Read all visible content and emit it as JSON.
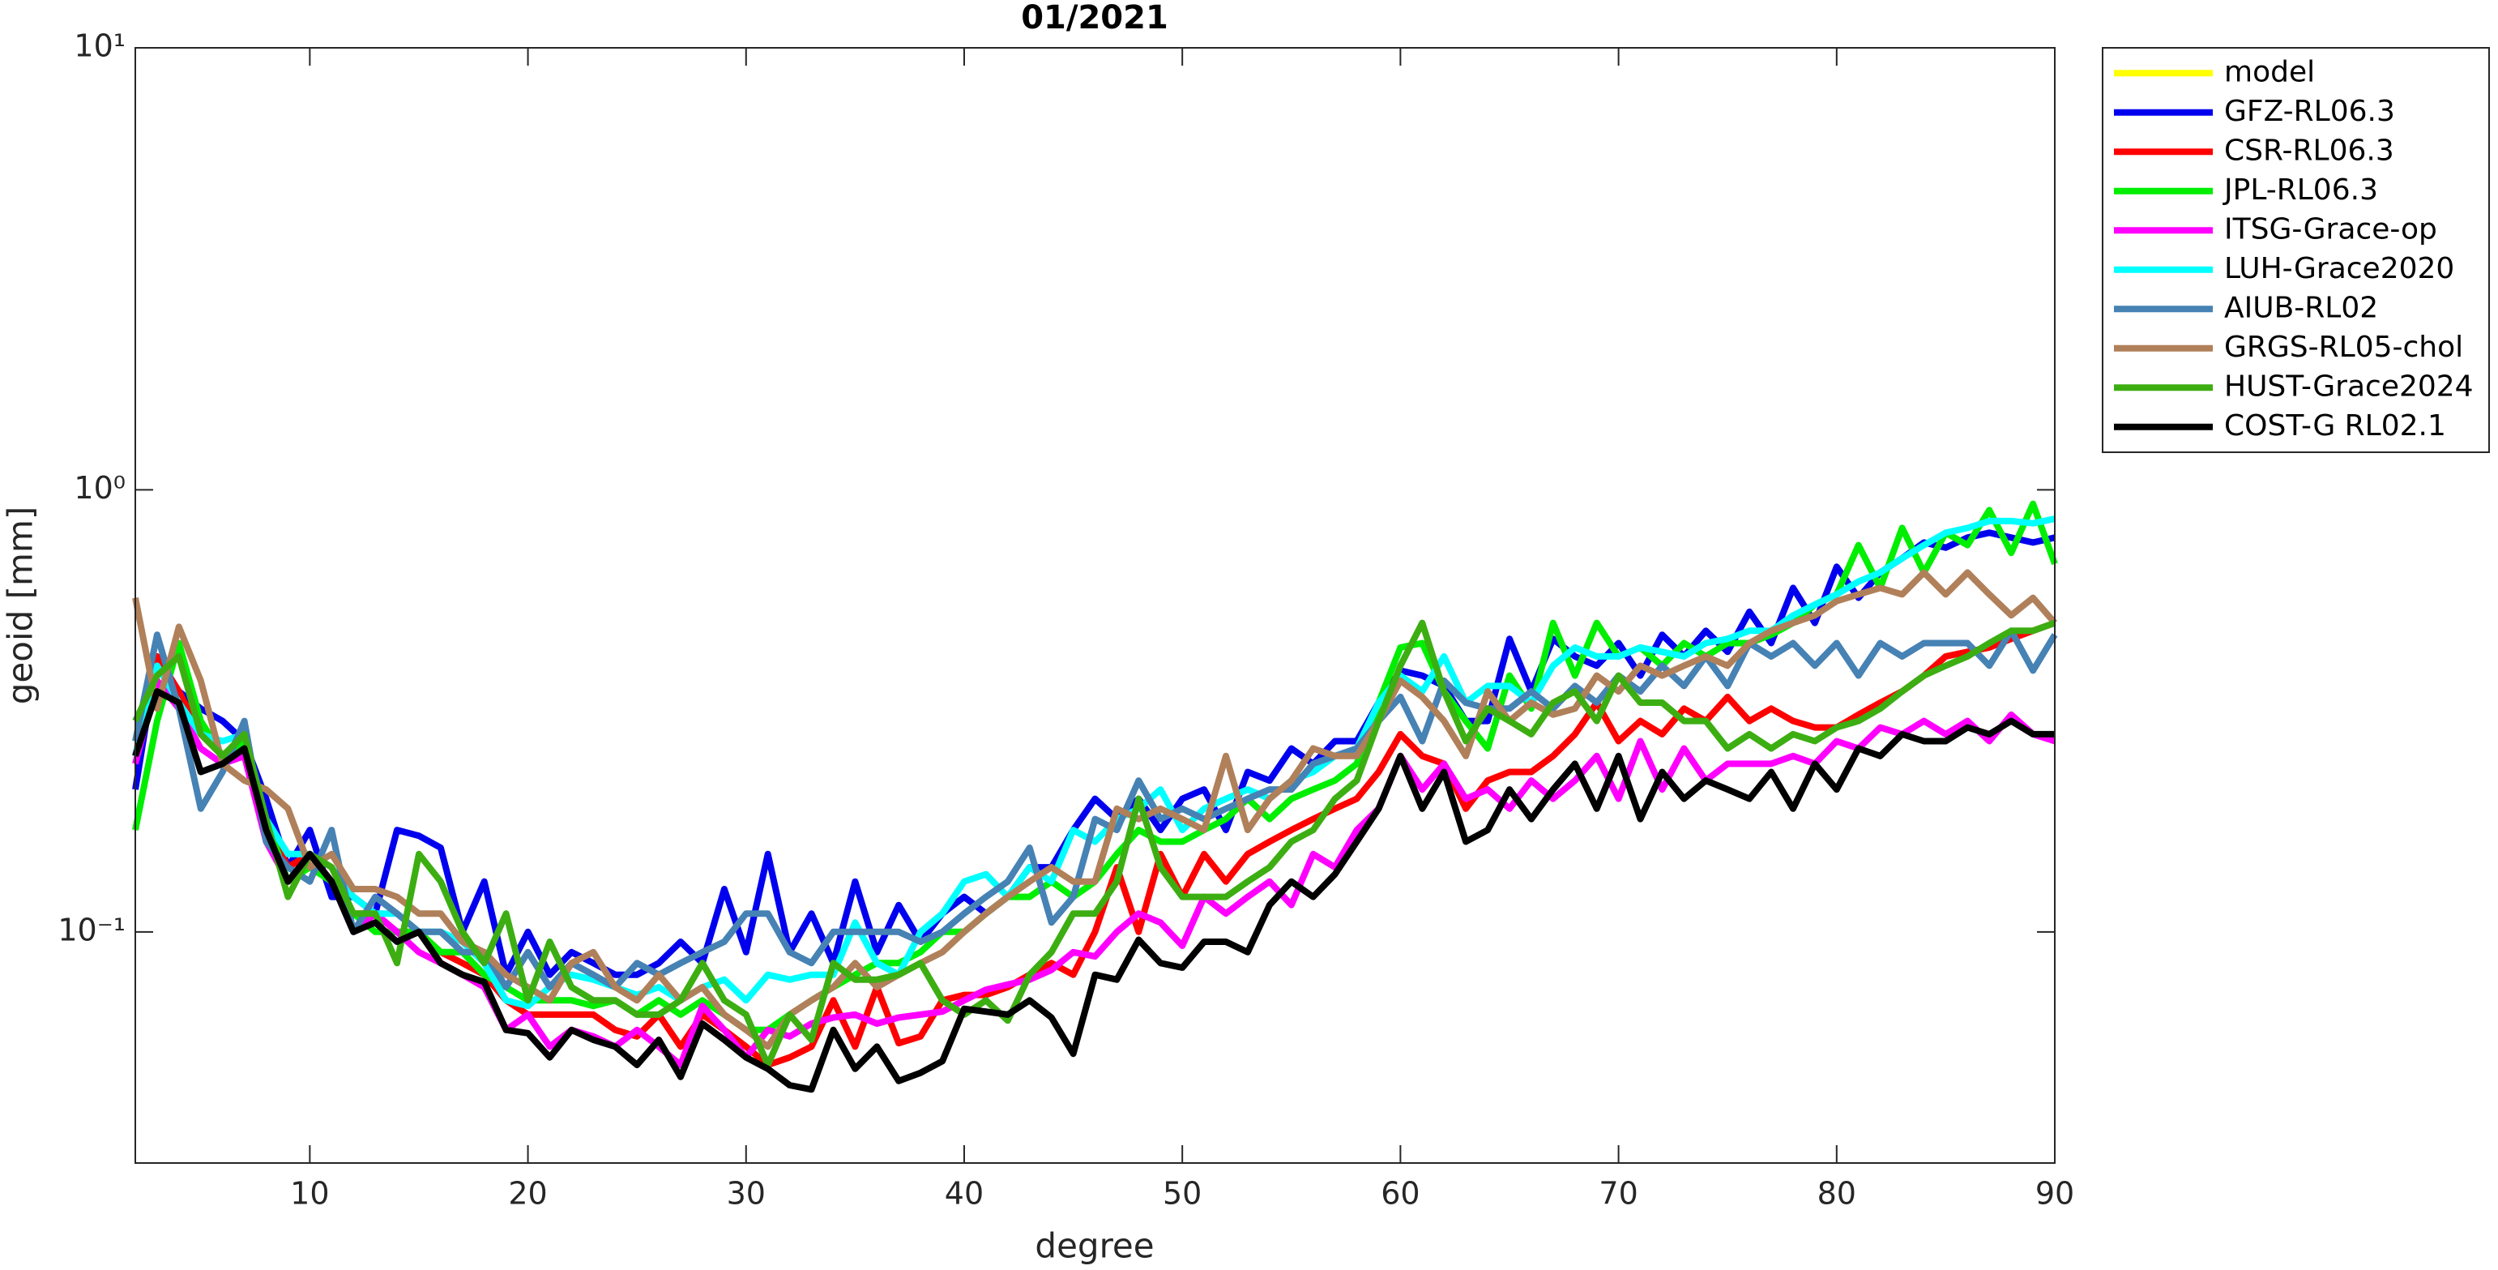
{
  "chart_data": {
    "type": "line",
    "title": "01/2021",
    "xlabel": "degree",
    "ylabel": "geoid [mm]",
    "yscale": "log",
    "legend": "northeastoutside",
    "xlim": [
      2,
      90
    ],
    "xticks": [
      10,
      20,
      30,
      40,
      50,
      60,
      70,
      80,
      90
    ],
    "ylim": [
      0.03,
      10
    ],
    "yticks": [
      {
        "value": 0.1,
        "label": "10⁻¹"
      },
      {
        "value": 1,
        "label": "10⁰"
      },
      {
        "value": 10,
        "label": "10¹"
      }
    ],
    "x": [
      2,
      3,
      4,
      5,
      6,
      7,
      8,
      9,
      10,
      11,
      12,
      13,
      14,
      15,
      16,
      17,
      18,
      19,
      20,
      21,
      22,
      23,
      24,
      25,
      26,
      27,
      28,
      29,
      30,
      31,
      32,
      33,
      34,
      35,
      36,
      37,
      38,
      39,
      40,
      41,
      42,
      43,
      44,
      45,
      46,
      47,
      48,
      49,
      50,
      51,
      52,
      53,
      54,
      55,
      56,
      57,
      58,
      59,
      60,
      61,
      62,
      63,
      64,
      65,
      66,
      67,
      68,
      69,
      70,
      71,
      72,
      73,
      74,
      75,
      76,
      77,
      78,
      79,
      80,
      81,
      82,
      83,
      84,
      85,
      86,
      87,
      88,
      89,
      90
    ],
    "series": [
      {
        "name": "model",
        "color": "#ffff00",
        "values": [
          null,
          null,
          null,
          null,
          null,
          null,
          null,
          null,
          null,
          null,
          null,
          null,
          null,
          null,
          null,
          null,
          null,
          null,
          null,
          null,
          null,
          null,
          null,
          null,
          null,
          null,
          null,
          null,
          null,
          null,
          null,
          null,
          null,
          null,
          null,
          null,
          null,
          null,
          null,
          null,
          null,
          null,
          null,
          null,
          null,
          null,
          null,
          null,
          null,
          null,
          null,
          null,
          null,
          null,
          null,
          null,
          null,
          null,
          null,
          null,
          null,
          null,
          null,
          null,
          null,
          null,
          null,
          null,
          null,
          null,
          null,
          null,
          null,
          null,
          null,
          null,
          null,
          null,
          null,
          null,
          null,
          null,
          null,
          null,
          null,
          null,
          null,
          null,
          null
        ]
      },
      {
        "name": "GFZ-RL06.3",
        "color": "#0000ee",
        "values": [
          0.21,
          0.42,
          0.35,
          0.32,
          0.3,
          0.27,
          0.2,
          0.14,
          0.17,
          0.12,
          0.12,
          0.11,
          0.17,
          0.165,
          0.155,
          0.1,
          0.13,
          0.08,
          0.1,
          0.08,
          0.09,
          0.085,
          0.08,
          0.08,
          0.085,
          0.095,
          0.085,
          0.125,
          0.09,
          0.15,
          0.09,
          0.11,
          0.085,
          0.13,
          0.09,
          0.115,
          0.095,
          0.11,
          0.12,
          0.11,
          0.12,
          0.14,
          0.14,
          0.17,
          0.2,
          0.18,
          0.2,
          0.17,
          0.2,
          0.21,
          0.17,
          0.23,
          0.22,
          0.26,
          0.24,
          0.27,
          0.27,
          0.33,
          0.39,
          0.38,
          0.36,
          0.3,
          0.3,
          0.46,
          0.35,
          0.46,
          0.42,
          0.4,
          0.45,
          0.38,
          0.47,
          0.42,
          0.48,
          0.43,
          0.53,
          0.45,
          0.6,
          0.5,
          0.67,
          0.57,
          0.65,
          0.7,
          0.76,
          0.74,
          0.78,
          0.8,
          0.78,
          0.76,
          0.78
        ]
      },
      {
        "name": "CSR-RL06.3",
        "color": "#ff0000",
        "values": [
          0.25,
          0.42,
          0.35,
          0.28,
          0.25,
          0.26,
          0.18,
          0.14,
          0.15,
          0.13,
          0.11,
          0.11,
          0.1,
          0.1,
          0.09,
          0.085,
          0.08,
          0.07,
          0.065,
          0.065,
          0.065,
          0.065,
          0.06,
          0.058,
          0.065,
          0.055,
          0.065,
          0.06,
          0.055,
          0.05,
          0.052,
          0.055,
          0.07,
          0.055,
          0.075,
          0.056,
          0.058,
          0.07,
          0.072,
          0.072,
          0.075,
          0.08,
          0.085,
          0.08,
          0.1,
          0.14,
          0.1,
          0.15,
          0.12,
          0.15,
          0.13,
          0.15,
          0.16,
          0.17,
          0.18,
          0.19,
          0.2,
          0.23,
          0.28,
          0.25,
          0.24,
          0.19,
          0.22,
          0.23,
          0.23,
          0.25,
          0.28,
          0.33,
          0.27,
          0.3,
          0.28,
          0.32,
          0.3,
          0.34,
          0.3,
          0.32,
          0.3,
          0.29,
          0.29,
          0.31,
          0.33,
          0.35,
          0.38,
          0.42,
          0.43,
          0.44,
          0.46,
          0.48,
          0.5
        ]
      },
      {
        "name": "JPL-RL06.3",
        "color": "#00ee00",
        "values": [
          0.17,
          0.3,
          0.45,
          0.3,
          0.25,
          0.27,
          0.18,
          0.13,
          0.14,
          0.13,
          0.11,
          0.1,
          0.1,
          0.1,
          0.09,
          0.09,
          0.08,
          0.075,
          0.07,
          0.07,
          0.07,
          0.068,
          0.07,
          0.065,
          0.07,
          0.065,
          0.07,
          0.065,
          0.06,
          0.06,
          0.065,
          0.07,
          0.075,
          0.08,
          0.085,
          0.085,
          0.09,
          0.1,
          0.1,
          0.11,
          0.12,
          0.12,
          0.13,
          0.12,
          0.13,
          0.15,
          0.17,
          0.16,
          0.16,
          0.17,
          0.18,
          0.2,
          0.18,
          0.2,
          0.21,
          0.22,
          0.24,
          0.33,
          0.44,
          0.45,
          0.35,
          0.3,
          0.26,
          0.38,
          0.32,
          0.5,
          0.38,
          0.5,
          0.42,
          0.44,
          0.4,
          0.45,
          0.42,
          0.45,
          0.45,
          0.47,
          0.5,
          0.55,
          0.58,
          0.75,
          0.6,
          0.82,
          0.65,
          0.8,
          0.75,
          0.9,
          0.72,
          0.93,
          0.68
        ]
      },
      {
        "name": "ITSG-Grace-op",
        "color": "#ff00ff",
        "values": [
          0.24,
          0.37,
          0.32,
          0.26,
          0.24,
          0.25,
          0.16,
          0.13,
          0.15,
          0.13,
          0.1,
          0.11,
          0.1,
          0.09,
          0.085,
          0.08,
          0.075,
          0.06,
          0.065,
          0.055,
          0.06,
          0.058,
          0.055,
          0.06,
          0.055,
          0.05,
          0.068,
          0.06,
          0.052,
          0.06,
          0.058,
          0.062,
          0.064,
          0.065,
          0.062,
          0.064,
          0.065,
          0.066,
          0.07,
          0.074,
          0.076,
          0.078,
          0.082,
          0.09,
          0.088,
          0.1,
          0.11,
          0.105,
          0.093,
          0.12,
          0.11,
          0.12,
          0.13,
          0.115,
          0.15,
          0.14,
          0.17,
          0.19,
          0.25,
          0.21,
          0.24,
          0.2,
          0.21,
          0.19,
          0.22,
          0.2,
          0.22,
          0.25,
          0.2,
          0.27,
          0.21,
          0.26,
          0.22,
          0.24,
          0.24,
          0.24,
          0.25,
          0.24,
          0.27,
          0.26,
          0.29,
          0.28,
          0.3,
          0.28,
          0.3,
          0.27,
          0.31,
          0.28,
          0.27
        ]
      },
      {
        "name": "LUH-Grace2020",
        "color": "#00ffff",
        "values": [
          0.25,
          0.4,
          0.33,
          0.28,
          0.27,
          0.28,
          0.18,
          0.15,
          0.15,
          0.14,
          0.12,
          0.11,
          0.11,
          0.1,
          0.1,
          0.095,
          0.085,
          0.07,
          0.068,
          0.075,
          0.08,
          0.078,
          0.075,
          0.072,
          0.075,
          0.07,
          0.075,
          0.078,
          0.07,
          0.08,
          0.078,
          0.08,
          0.08,
          0.105,
          0.085,
          0.08,
          0.1,
          0.11,
          0.13,
          0.135,
          0.12,
          0.14,
          0.13,
          0.17,
          0.16,
          0.18,
          0.19,
          0.21,
          0.17,
          0.19,
          0.2,
          0.21,
          0.2,
          0.22,
          0.23,
          0.25,
          0.26,
          0.33,
          0.38,
          0.35,
          0.42,
          0.33,
          0.36,
          0.36,
          0.33,
          0.4,
          0.44,
          0.42,
          0.42,
          0.44,
          0.43,
          0.42,
          0.45,
          0.46,
          0.48,
          0.48,
          0.52,
          0.55,
          0.58,
          0.62,
          0.65,
          0.7,
          0.75,
          0.8,
          0.82,
          0.85,
          0.85,
          0.84,
          0.86
        ]
      },
      {
        "name": "AIUB-RL02",
        "color": "#4682b4",
        "values": [
          0.27,
          0.47,
          0.32,
          0.19,
          0.23,
          0.3,
          0.16,
          0.14,
          0.13,
          0.17,
          0.1,
          0.12,
          0.11,
          0.1,
          0.1,
          0.09,
          0.09,
          0.075,
          0.09,
          0.075,
          0.085,
          0.08,
          0.075,
          0.085,
          0.08,
          0.085,
          0.09,
          0.095,
          0.11,
          0.11,
          0.09,
          0.085,
          0.1,
          0.1,
          0.1,
          0.1,
          0.095,
          0.1,
          0.11,
          0.12,
          0.13,
          0.155,
          0.105,
          0.12,
          0.18,
          0.17,
          0.22,
          0.18,
          0.19,
          0.18,
          0.19,
          0.2,
          0.21,
          0.21,
          0.24,
          0.25,
          0.26,
          0.3,
          0.34,
          0.27,
          0.37,
          0.33,
          0.32,
          0.32,
          0.35,
          0.32,
          0.36,
          0.33,
          0.38,
          0.35,
          0.4,
          0.36,
          0.42,
          0.36,
          0.45,
          0.42,
          0.45,
          0.4,
          0.45,
          0.38,
          0.45,
          0.42,
          0.45,
          0.45,
          0.45,
          0.4,
          0.48,
          0.39,
          0.47
        ]
      },
      {
        "name": "GRGS-RL05-chol",
        "color": "#b0805a",
        "values": [
          0.57,
          0.32,
          0.49,
          0.37,
          0.24,
          0.22,
          0.21,
          0.19,
          0.14,
          0.15,
          0.125,
          0.125,
          0.12,
          0.11,
          0.11,
          0.095,
          0.09,
          0.08,
          0.075,
          0.07,
          0.085,
          0.09,
          0.075,
          0.07,
          0.08,
          0.07,
          0.075,
          0.065,
          0.06,
          0.055,
          0.065,
          0.07,
          0.075,
          0.085,
          0.075,
          0.08,
          0.085,
          0.09,
          0.1,
          0.11,
          0.12,
          0.13,
          0.14,
          0.13,
          0.13,
          0.19,
          0.18,
          0.19,
          0.18,
          0.17,
          0.25,
          0.17,
          0.2,
          0.22,
          0.26,
          0.25,
          0.25,
          0.3,
          0.37,
          0.34,
          0.3,
          0.25,
          0.35,
          0.3,
          0.33,
          0.31,
          0.32,
          0.38,
          0.35,
          0.4,
          0.38,
          0.4,
          0.42,
          0.4,
          0.45,
          0.48,
          0.5,
          0.52,
          0.56,
          0.58,
          0.6,
          0.58,
          0.65,
          0.58,
          0.65,
          0.58,
          0.52,
          0.57,
          0.5
        ]
      },
      {
        "name": "HUST-Grace2024",
        "color": "#3cae12",
        "values": [
          0.3,
          0.38,
          0.42,
          0.28,
          0.25,
          0.28,
          0.18,
          0.12,
          0.15,
          0.14,
          0.11,
          0.11,
          0.085,
          0.15,
          0.13,
          0.1,
          0.085,
          0.11,
          0.07,
          0.095,
          0.075,
          0.07,
          0.07,
          0.065,
          0.065,
          0.07,
          0.085,
          0.07,
          0.065,
          0.05,
          0.065,
          0.057,
          0.085,
          0.078,
          0.078,
          0.08,
          0.085,
          0.07,
          0.065,
          0.07,
          0.063,
          0.08,
          0.09,
          0.11,
          0.11,
          0.13,
          0.2,
          0.14,
          0.12,
          0.12,
          0.12,
          0.13,
          0.14,
          0.16,
          0.17,
          0.2,
          0.22,
          0.3,
          0.4,
          0.5,
          0.35,
          0.27,
          0.32,
          0.3,
          0.28,
          0.33,
          0.35,
          0.3,
          0.38,
          0.33,
          0.33,
          0.3,
          0.3,
          0.26,
          0.28,
          0.26,
          0.28,
          0.27,
          0.29,
          0.3,
          0.32,
          0.35,
          0.38,
          0.4,
          0.42,
          0.45,
          0.48,
          0.48,
          0.5
        ]
      },
      {
        "name": "COST-G RL02.1",
        "color": "#000000",
        "values": [
          0.25,
          0.35,
          0.33,
          0.23,
          0.24,
          0.26,
          0.17,
          0.13,
          0.15,
          0.13,
          0.1,
          0.105,
          0.095,
          0.1,
          0.085,
          0.08,
          0.077,
          0.06,
          0.059,
          0.052,
          0.06,
          0.057,
          0.055,
          0.05,
          0.057,
          0.047,
          0.062,
          0.057,
          0.052,
          0.049,
          0.045,
          0.044,
          0.06,
          0.049,
          0.055,
          0.046,
          0.048,
          0.051,
          0.067,
          0.066,
          0.065,
          0.07,
          0.064,
          0.053,
          0.08,
          0.078,
          0.096,
          0.085,
          0.083,
          0.095,
          0.095,
          0.09,
          0.115,
          0.13,
          0.12,
          0.135,
          0.16,
          0.19,
          0.25,
          0.19,
          0.23,
          0.16,
          0.17,
          0.21,
          0.18,
          0.21,
          0.24,
          0.19,
          0.25,
          0.18,
          0.23,
          0.2,
          0.22,
          0.21,
          0.2,
          0.23,
          0.19,
          0.24,
          0.21,
          0.26,
          0.25,
          0.28,
          0.27,
          0.27,
          0.29,
          0.28,
          0.3,
          0.28,
          0.28
        ]
      }
    ]
  }
}
